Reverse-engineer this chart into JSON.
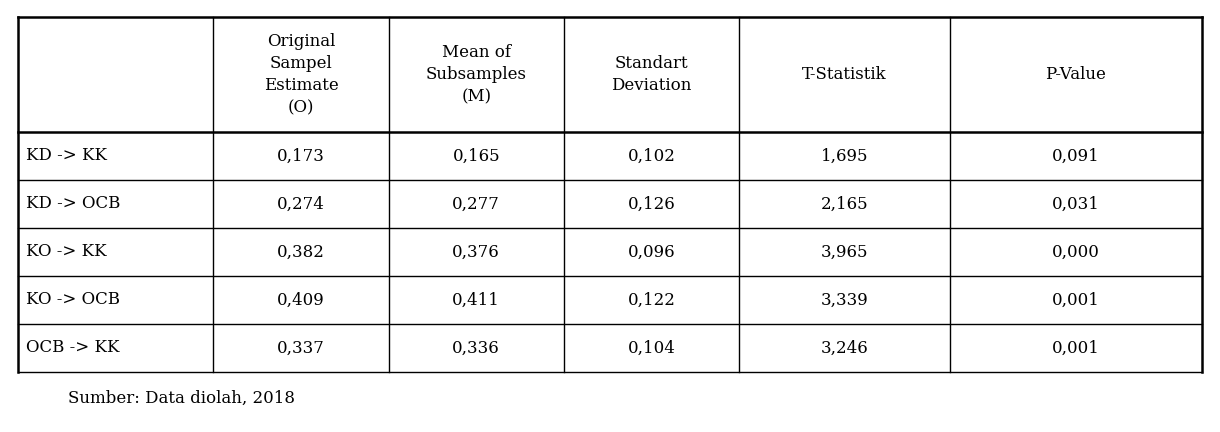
{
  "col_headers": [
    "Original\nSampel\nEstimate\n(O)",
    "Mean of\nSubsamples\n(M)",
    "Standart\nDeviation",
    "T-Statistik",
    "P-Value"
  ],
  "row_labels": [
    "KD -> KK",
    "KD -> OCB",
    "KO -> KK",
    "KO -> OCB",
    "OCB -> KK"
  ],
  "table_data": [
    [
      "0,173",
      "0,165",
      "0,102",
      "1,695",
      "0,091"
    ],
    [
      "0,274",
      "0,277",
      "0,126",
      "2,165",
      "0,031"
    ],
    [
      "0,382",
      "0,376",
      "0,096",
      "3,965",
      "0,000"
    ],
    [
      "0,409",
      "0,411",
      "0,122",
      "3,339",
      "0,001"
    ],
    [
      "0,337",
      "0,336",
      "0,104",
      "3,246",
      "0,001"
    ]
  ],
  "footer": "Sumber: Data diolah, 2018",
  "bg_color": "#ffffff",
  "text_color": "#000000",
  "line_color": "#000000",
  "header_fontsize": 12,
  "cell_fontsize": 12,
  "footer_fontsize": 12
}
